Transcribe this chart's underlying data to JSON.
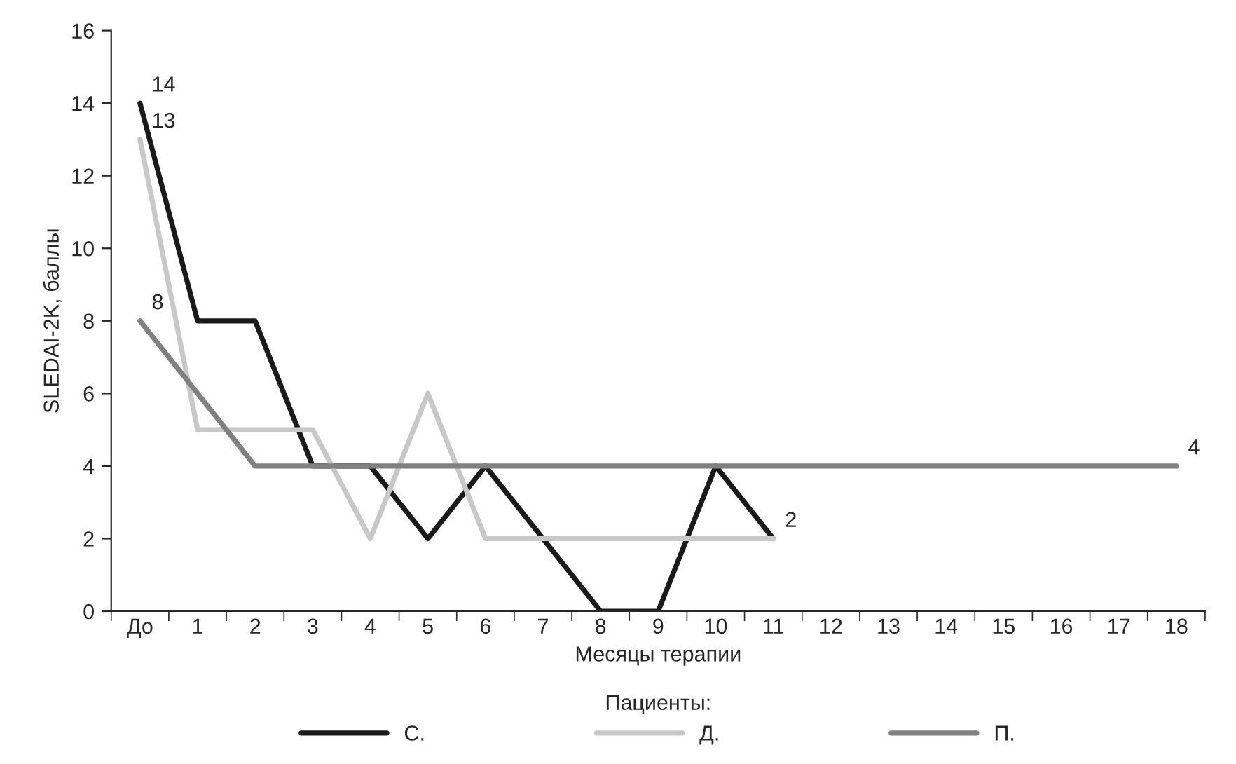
{
  "chart_data": {
    "type": "line",
    "xlabel": "Месяцы терапии",
    "ylabel": "SLEDAI-2K, баллы",
    "legend_title": "Пациенты:",
    "categories": [
      "До",
      "1",
      "2",
      "3",
      "4",
      "5",
      "6",
      "7",
      "8",
      "9",
      "10",
      "11",
      "12",
      "13",
      "14",
      "15",
      "16",
      "17",
      "18"
    ],
    "series": [
      {
        "name": "С.",
        "color": "#1a1a1a",
        "values": [
          14,
          8,
          8,
          4,
          4,
          2,
          4,
          2,
          0,
          0,
          4,
          2,
          null,
          null,
          null,
          null,
          null,
          null,
          null
        ]
      },
      {
        "name": "Д.",
        "color": "#c8c8c8",
        "values": [
          13,
          5,
          5,
          5,
          2,
          6,
          2,
          2,
          2,
          2,
          2,
          2,
          null,
          null,
          null,
          null,
          null,
          null,
          null
        ]
      },
      {
        "name": "П.",
        "color": "#808080",
        "values": [
          8,
          6,
          4,
          4,
          4,
          4,
          4,
          4,
          4,
          4,
          4,
          4,
          4,
          4,
          4,
          4,
          4,
          4,
          4
        ]
      }
    ],
    "annotations": [
      {
        "text": "14",
        "x": "До",
        "y": 14
      },
      {
        "text": "13",
        "x": "До",
        "y": 13
      },
      {
        "text": "8",
        "x": "До",
        "y": 8
      },
      {
        "text": "2",
        "x": "11",
        "y": 2
      },
      {
        "text": "4",
        "x": "18",
        "y": 4
      }
    ],
    "ylim": [
      0,
      16
    ],
    "yticks": [
      0,
      2,
      4,
      6,
      8,
      10,
      12,
      14,
      16
    ],
    "grid": false,
    "legend": "bottom",
    "marker": "none",
    "line_style": "solid"
  }
}
